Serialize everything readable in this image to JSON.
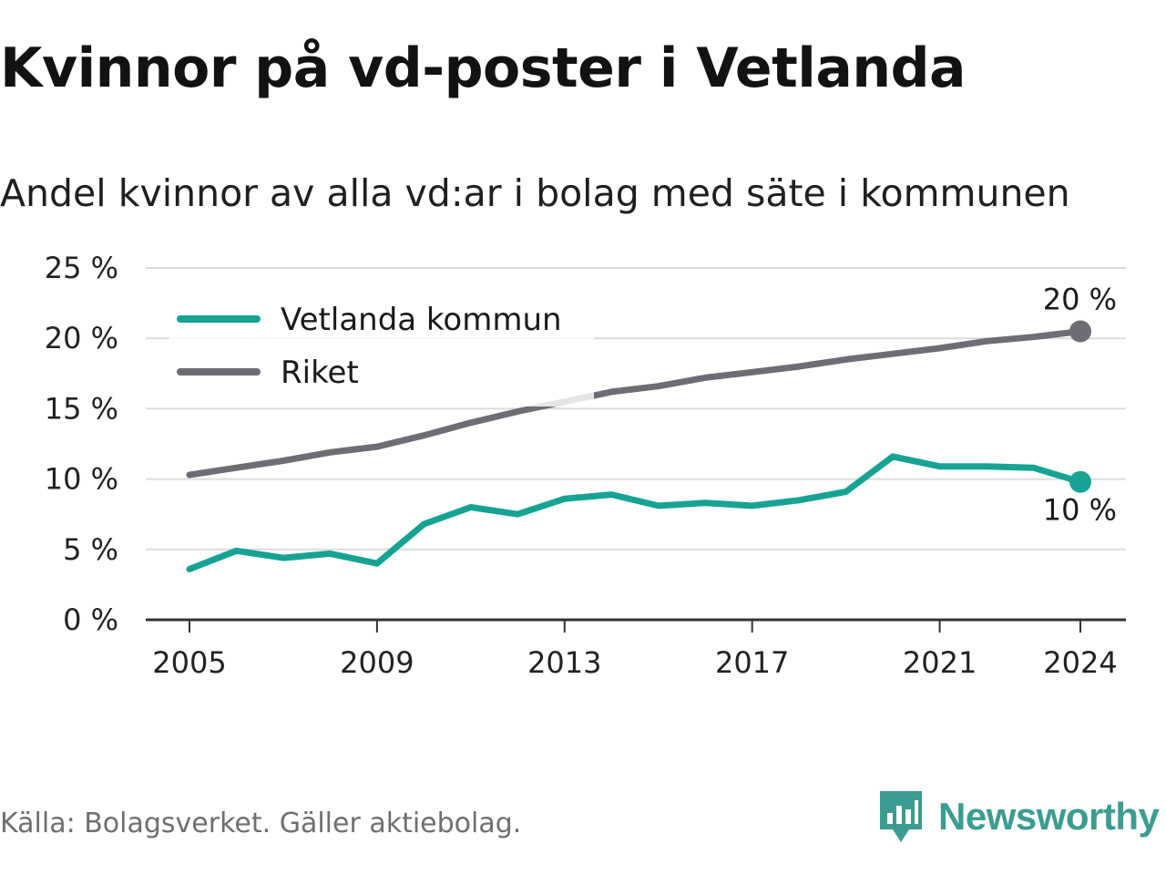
{
  "title": "Kvinnor på vd-poster i Vetlanda",
  "subtitle": "Andel kvinnor av alla vd:ar i bolag med säte i kommunen",
  "source": "Källa: Bolagsverket. Gäller aktiebolag.",
  "brand": {
    "name": "Newsworthy",
    "icon": "newsworthy-logo-icon",
    "color": "#3b9c8f"
  },
  "chart_data": {
    "type": "line",
    "x": [
      2005,
      2006,
      2007,
      2008,
      2009,
      2010,
      2011,
      2012,
      2013,
      2014,
      2015,
      2016,
      2017,
      2018,
      2019,
      2020,
      2021,
      2022,
      2023,
      2024
    ],
    "series": [
      {
        "name": "Vetlanda kommun",
        "color": "#16a394",
        "values": [
          3.6,
          4.9,
          4.4,
          4.7,
          4.0,
          6.8,
          8.0,
          7.5,
          8.6,
          8.9,
          8.1,
          8.3,
          8.1,
          8.5,
          9.1,
          11.6,
          10.9,
          10.9,
          10.8,
          9.8
        ],
        "end_label": "10 %"
      },
      {
        "name": "Riket",
        "color": "#6e6c74",
        "values": [
          10.3,
          10.8,
          11.3,
          11.9,
          12.3,
          13.1,
          14.0,
          14.8,
          15.5,
          16.2,
          16.6,
          17.2,
          17.6,
          18.0,
          18.5,
          18.9,
          19.3,
          19.8,
          20.1,
          20.5
        ],
        "end_label": "20 %"
      }
    ],
    "x_ticks": [
      "2005",
      "2009",
      "2013",
      "2017",
      "2021",
      "2024"
    ],
    "y_ticks": [
      "0 %",
      "5 %",
      "10 %",
      "15 %",
      "20 %",
      "25 %"
    ],
    "ylim": [
      0,
      25
    ],
    "xlim": [
      2005,
      2024
    ],
    "grid": "horizontal",
    "legend_position": "top-left"
  }
}
